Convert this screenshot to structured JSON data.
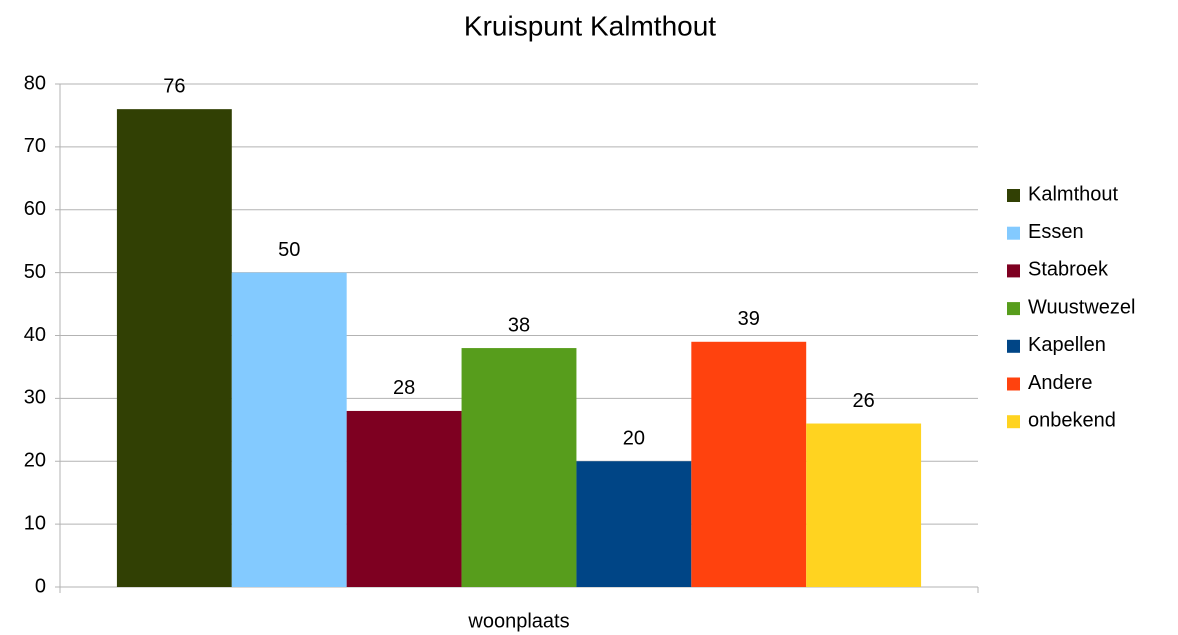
{
  "chart_data": {
    "type": "bar",
    "title": "Kruispunt Kalmthout",
    "categories": [
      "woonplaats"
    ],
    "series": [
      {
        "name": "Kalmthout",
        "color": "#314004",
        "values": [
          76
        ]
      },
      {
        "name": "Essen",
        "color": "#83caff",
        "values": [
          50
        ]
      },
      {
        "name": "Stabroek",
        "color": "#7e0021",
        "values": [
          28
        ]
      },
      {
        "name": "Wuustwezel",
        "color": "#579d1c",
        "values": [
          38
        ]
      },
      {
        "name": "Kapellen",
        "color": "#004586",
        "values": [
          20
        ]
      },
      {
        "name": "Andere",
        "color": "#ff420e",
        "values": [
          39
        ]
      },
      {
        "name": "onbekend",
        "color": "#ffd320",
        "values": [
          26
        ]
      }
    ],
    "ylim": [
      0,
      80
    ],
    "yticks": [
      0,
      10,
      20,
      30,
      40,
      50,
      60,
      70,
      80
    ],
    "grid": true,
    "legend": "right"
  }
}
